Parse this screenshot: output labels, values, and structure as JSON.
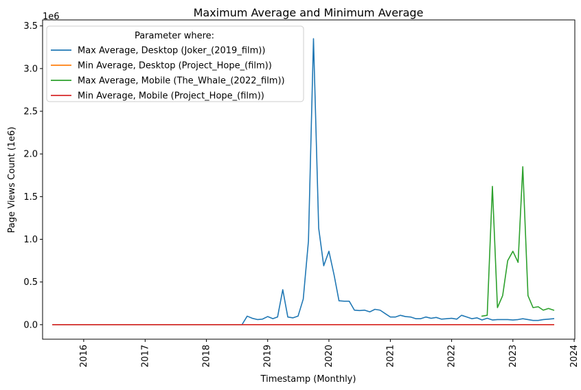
{
  "chart_data": {
    "type": "line",
    "title": "Maximum Average and Minimum Average",
    "xlabel": "Timestamp (Monthly)",
    "ylabel": "Page Views Count (1e6)",
    "y_offset_text": "1e6",
    "ylim": [
      -0.17,
      3.57
    ],
    "xlim": [
      "2015-05-01",
      "2024-01-05"
    ],
    "y_ticks": [
      0.0,
      0.5,
      1.0,
      1.5,
      2.0,
      2.5,
      3.0,
      3.5
    ],
    "y_tick_labels": [
      "0.0",
      "0.5",
      "1.0",
      "1.5",
      "2.0",
      "2.5",
      "3.0",
      "3.5"
    ],
    "x_ticks": [
      "2016-01-01",
      "2017-01-01",
      "2018-01-01",
      "2019-01-01",
      "2020-01-01",
      "2021-01-01",
      "2022-01-01",
      "2023-01-01",
      "2024-01-01"
    ],
    "x_tick_labels": [
      "2016",
      "2017",
      "2018",
      "2019",
      "2020",
      "2021",
      "2022",
      "2023",
      "2024"
    ],
    "grid": false,
    "legend": {
      "title": "Parameter where:",
      "placement": "top-left"
    },
    "series": [
      {
        "name": "Max Average, Desktop (Joker_(2019_film))",
        "color": "#1f77b4",
        "points": [
          [
            "2015-07-01",
            0.0
          ],
          [
            "2018-07-01",
            0.0
          ],
          [
            "2018-08-01",
            0.0
          ],
          [
            "2018-09-01",
            0.1
          ],
          [
            "2018-10-01",
            0.075
          ],
          [
            "2018-11-01",
            0.06
          ],
          [
            "2018-12-01",
            0.065
          ],
          [
            "2019-01-01",
            0.095
          ],
          [
            "2019-02-01",
            0.07
          ],
          [
            "2019-03-01",
            0.09
          ],
          [
            "2019-04-01",
            0.41
          ],
          [
            "2019-05-01",
            0.09
          ],
          [
            "2019-06-01",
            0.08
          ],
          [
            "2019-07-01",
            0.1
          ],
          [
            "2019-08-01",
            0.3
          ],
          [
            "2019-09-01",
            0.98
          ],
          [
            "2019-10-01",
            3.35
          ],
          [
            "2019-11-01",
            1.13
          ],
          [
            "2019-12-01",
            0.69
          ],
          [
            "2020-01-01",
            0.86
          ],
          [
            "2020-02-01",
            0.58
          ],
          [
            "2020-03-01",
            0.28
          ],
          [
            "2020-04-01",
            0.275
          ],
          [
            "2020-05-01",
            0.275
          ],
          [
            "2020-06-01",
            0.17
          ],
          [
            "2020-07-01",
            0.165
          ],
          [
            "2020-08-01",
            0.17
          ],
          [
            "2020-09-01",
            0.15
          ],
          [
            "2020-10-01",
            0.18
          ],
          [
            "2020-11-01",
            0.17
          ],
          [
            "2020-12-01",
            0.13
          ],
          [
            "2021-01-01",
            0.09
          ],
          [
            "2021-02-01",
            0.09
          ],
          [
            "2021-03-01",
            0.11
          ],
          [
            "2021-04-01",
            0.095
          ],
          [
            "2021-05-01",
            0.09
          ],
          [
            "2021-06-01",
            0.07
          ],
          [
            "2021-07-01",
            0.07
          ],
          [
            "2021-08-01",
            0.09
          ],
          [
            "2021-09-01",
            0.075
          ],
          [
            "2021-10-01",
            0.085
          ],
          [
            "2021-11-01",
            0.065
          ],
          [
            "2021-12-01",
            0.07
          ],
          [
            "2022-01-01",
            0.075
          ],
          [
            "2022-02-01",
            0.065
          ],
          [
            "2022-03-01",
            0.11
          ],
          [
            "2022-04-01",
            0.09
          ],
          [
            "2022-05-01",
            0.07
          ],
          [
            "2022-06-01",
            0.08
          ],
          [
            "2022-07-01",
            0.055
          ],
          [
            "2022-08-01",
            0.075
          ],
          [
            "2022-09-01",
            0.055
          ],
          [
            "2022-10-01",
            0.06
          ],
          [
            "2022-11-01",
            0.06
          ],
          [
            "2022-12-01",
            0.06
          ],
          [
            "2023-01-01",
            0.055
          ],
          [
            "2023-02-01",
            0.06
          ],
          [
            "2023-03-01",
            0.07
          ],
          [
            "2023-04-01",
            0.06
          ],
          [
            "2023-05-01",
            0.05
          ],
          [
            "2023-06-01",
            0.05
          ],
          [
            "2023-07-01",
            0.06
          ],
          [
            "2023-08-01",
            0.065
          ],
          [
            "2023-09-01",
            0.07
          ]
        ]
      },
      {
        "name": "Min Average, Desktop (Project_Hope_(film))",
        "color": "#ff7f0e",
        "points": [
          [
            "2015-07-01",
            0.0
          ],
          [
            "2023-09-01",
            0.0
          ]
        ]
      },
      {
        "name": "Max Average, Mobile (The_Whale_(2022_film))",
        "color": "#2ca02c",
        "points": [
          [
            "2022-07-01",
            0.1
          ],
          [
            "2022-08-01",
            0.11
          ],
          [
            "2022-09-01",
            1.62
          ],
          [
            "2022-10-01",
            0.2
          ],
          [
            "2022-11-01",
            0.34
          ],
          [
            "2022-12-01",
            0.75
          ],
          [
            "2023-01-01",
            0.86
          ],
          [
            "2023-02-01",
            0.73
          ],
          [
            "2023-03-01",
            1.85
          ],
          [
            "2023-04-01",
            0.34
          ],
          [
            "2023-05-01",
            0.2
          ],
          [
            "2023-06-01",
            0.21
          ],
          [
            "2023-07-01",
            0.17
          ],
          [
            "2023-08-01",
            0.19
          ],
          [
            "2023-09-01",
            0.17
          ]
        ]
      },
      {
        "name": "Min Average, Mobile (Project_Hope_(film))",
        "color": "#d62728",
        "points": [
          [
            "2015-07-01",
            0.0
          ],
          [
            "2023-09-01",
            0.0
          ]
        ]
      }
    ]
  }
}
